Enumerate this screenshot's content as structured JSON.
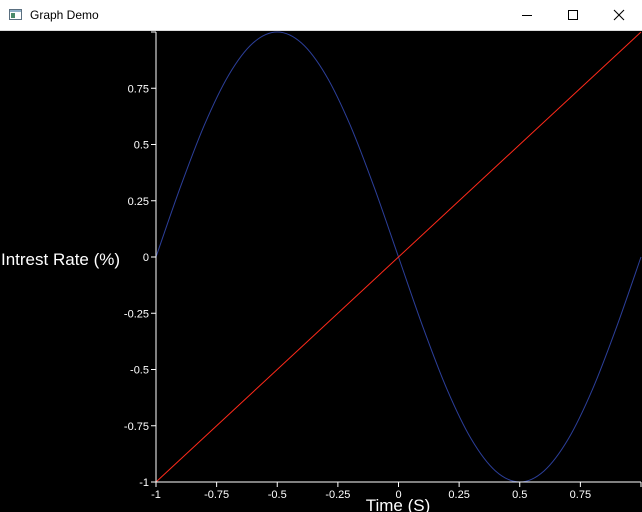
{
  "window": {
    "title": "Graph Demo",
    "icons": {
      "app": "app-window-icon",
      "minimize": "minimize-icon",
      "maximize": "maximize-icon",
      "close": "close-icon"
    }
  },
  "chart_data": {
    "type": "line",
    "xlabel": "Time (S)",
    "ylabel": "Intrest Rate (%)",
    "xlim": [
      -1,
      1
    ],
    "ylim": [
      -1,
      1
    ],
    "x_ticks": [
      -1,
      -0.75,
      -0.5,
      -0.25,
      0,
      0.25,
      0.5,
      0.75
    ],
    "x_tick_labels": [
      "-1",
      "-0.75",
      "-0.5",
      "-0.25",
      "0",
      "0.25",
      "0.5",
      "0.75"
    ],
    "y_ticks": [
      -1,
      -0.75,
      -0.5,
      -0.25,
      0,
      0.25,
      0.5,
      0.75
    ],
    "y_tick_labels": [
      "-1",
      "-0.75",
      "-0.5",
      "-0.25",
      "0",
      "0.25",
      "0.5",
      "0.75"
    ],
    "grid": false,
    "background": "#000000",
    "axis_color": "#ffffff",
    "series": [
      {
        "color": "#2c3f9a",
        "x": [
          -1,
          -0.9,
          -0.8,
          -0.7,
          -0.6,
          -0.5,
          -0.4,
          -0.3,
          -0.2,
          -0.1,
          0,
          0.1,
          0.2,
          0.3,
          0.4,
          0.5,
          0.6,
          0.7,
          0.8,
          0.9,
          1
        ],
        "y": [
          0,
          0.309,
          0.588,
          0.809,
          0.951,
          1,
          0.951,
          0.809,
          0.588,
          0.309,
          0,
          -0.309,
          -0.588,
          -0.809,
          -0.951,
          -1,
          -0.951,
          -0.809,
          -0.588,
          -0.309,
          0
        ]
      },
      {
        "color": "#ff2a1a",
        "x": [
          -1,
          1
        ],
        "y": [
          -1,
          1
        ]
      }
    ]
  }
}
